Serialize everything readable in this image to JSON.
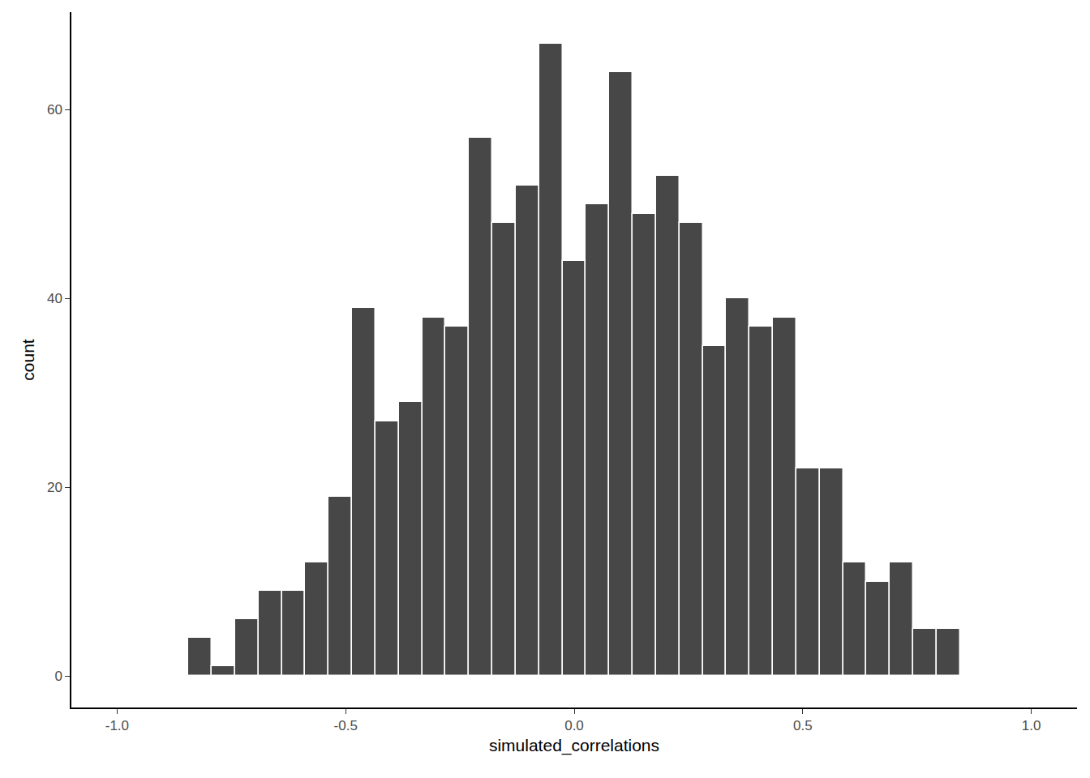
{
  "chart_data": {
    "type": "histogram",
    "x_label": "simulated_correlations",
    "y_label": "count",
    "bins": [
      -0.844,
      -0.79285,
      -0.7417,
      -0.69055,
      -0.6394,
      -0.58825,
      -0.5371,
      -0.48595,
      -0.4348,
      -0.38365,
      -0.3325,
      -0.28135,
      -0.2302,
      -0.17905,
      -0.1279,
      -0.07675,
      -0.0256,
      0.02555,
      0.0767,
      0.12785,
      0.179,
      0.23015,
      0.2813,
      0.33245,
      0.3836,
      0.43475,
      0.4859,
      0.53705,
      0.5882,
      0.63935,
      0.6905,
      0.74165,
      0.7928,
      0.84395
    ],
    "values": [
      4,
      1,
      6,
      9,
      9,
      12,
      19,
      39,
      27,
      29,
      38,
      37,
      57,
      48,
      52,
      67,
      44,
      50,
      64,
      49,
      53,
      48,
      35,
      40,
      37,
      38,
      22,
      22,
      12,
      10,
      12,
      5,
      5
    ],
    "color": "#474747",
    "xlim": [
      -1.1,
      1.1
    ],
    "xticks": [
      {
        "value": -1.0,
        "label": "-1.0"
      },
      -0.5,
      {
        "value": 0,
        "label": "0.0"
      },
      0.5,
      {
        "value": 1.0,
        "label": "1.0"
      }
    ],
    "ylim": [
      -3.35,
      70.35
    ],
    "yticks": [
      0,
      20,
      40,
      60
    ],
    "grid": false
  }
}
